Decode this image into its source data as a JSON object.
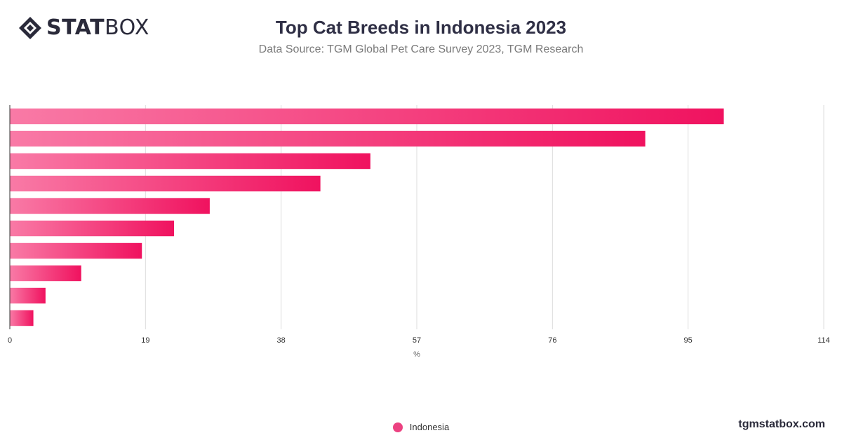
{
  "header": {
    "logo_bold": "STAT",
    "logo_light": "BOX",
    "title": "Top Cat Breeds in Indonesia 2023",
    "subtitle": "Data Source: TGM Global Pet Care Survey 2023, TGM Research"
  },
  "footer": {
    "brand": "tgmstatbox.com"
  },
  "colors": {
    "bar_start": "#f97aa6",
    "bar_end": "#f0125f",
    "grid": "#dddddd",
    "axis": "#333333",
    "text": "#333333"
  },
  "chart_data": {
    "type": "bar",
    "orientation": "horizontal",
    "title": "Top Cat Breeds in Indonesia 2023",
    "subtitle": "Data Source: TGM Global Pet Care Survey 2023, TGM Research",
    "xlabel": "%",
    "ylabel": "",
    "xlim": [
      0,
      114
    ],
    "ticks": [
      0,
      19,
      38,
      57,
      76,
      95,
      114
    ],
    "grid": true,
    "legend": "bottom-center",
    "series": [
      {
        "name": "Indonesia",
        "values": [
          100,
          89,
          50.5,
          43.5,
          28,
          23,
          18.5,
          10,
          5,
          3.3
        ]
      }
    ]
  }
}
